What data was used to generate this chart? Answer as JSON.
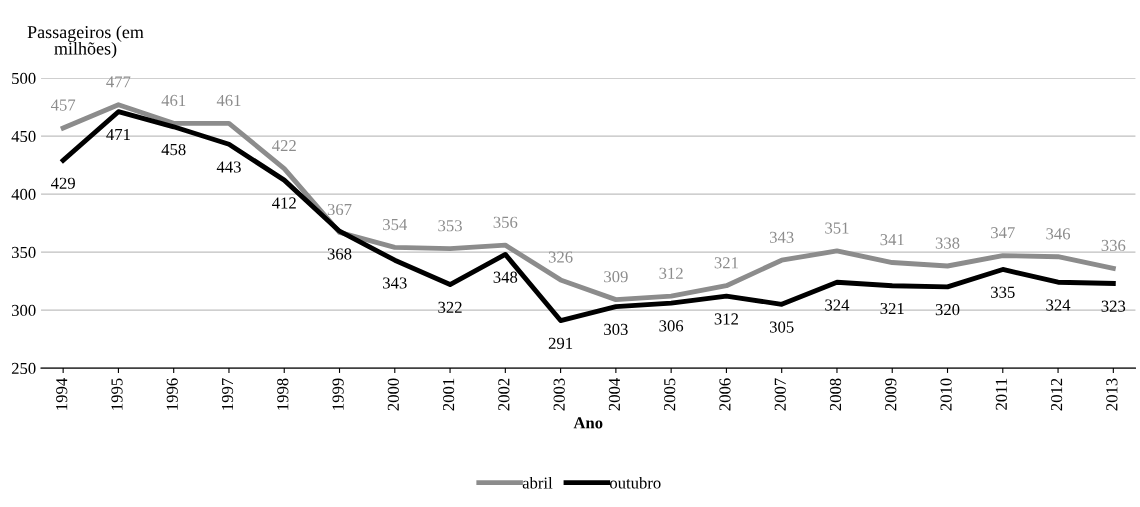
{
  "chart_data": {
    "type": "line",
    "xlabel": "Ano",
    "ylabel": "Passageiros (em milhões)",
    "categories": [
      "1994",
      "1995",
      "1996",
      "1997",
      "1998",
      "1999",
      "2000",
      "2001",
      "2002",
      "2003",
      "2004",
      "2005",
      "2006",
      "2007",
      "2008",
      "2009",
      "2010",
      "2011",
      "2012",
      "2013"
    ],
    "series": [
      {
        "name": "abril",
        "color": "#8c8c8c",
        "values": [
          457,
          477,
          461,
          461,
          422,
          367,
          354,
          353,
          356,
          326,
          309,
          312,
          321,
          343,
          351,
          341,
          338,
          347,
          346,
          336
        ]
      },
      {
        "name": "outubro",
        "color": "#000000",
        "values": [
          429,
          471,
          458,
          443,
          412,
          368,
          343,
          322,
          348,
          291,
          303,
          306,
          312,
          305,
          324,
          321,
          320,
          335,
          324,
          323
        ]
      }
    ],
    "ylim": [
      250,
      500
    ],
    "yticks": [
      250,
      300,
      350,
      400,
      450,
      500
    ],
    "grid": "y",
    "legend": "bottom",
    "data_labels": true,
    "marker": "none",
    "line_style": "solid"
  }
}
